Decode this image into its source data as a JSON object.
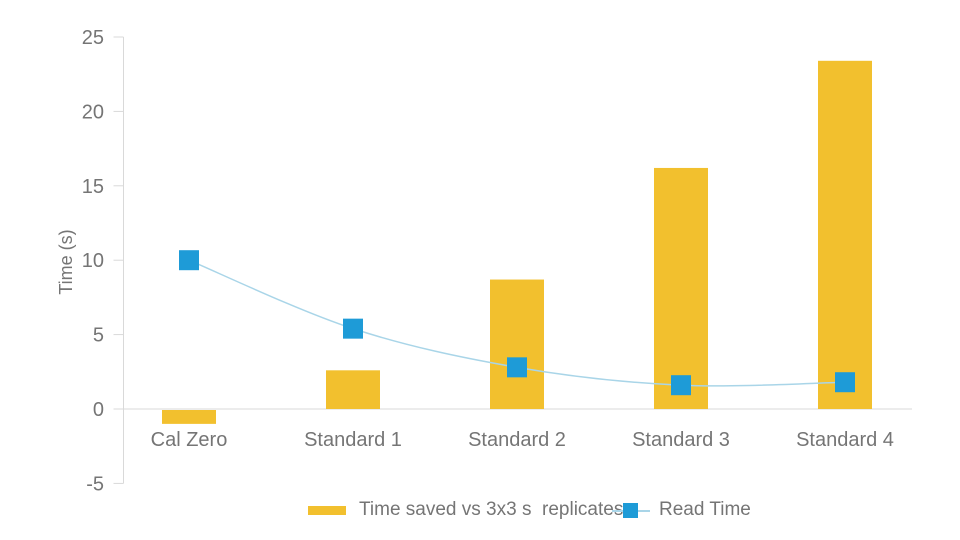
{
  "chart_data": {
    "type": "bar",
    "subtype": "combo-bar-line",
    "title": "",
    "categories": [
      "Cal Zero",
      "Standard 1",
      "Standard 2",
      "Standard 3",
      "Standard 4"
    ],
    "series": [
      {
        "name": "Time saved vs 3x3 s  replicates",
        "type": "bar",
        "color": "#F2C02E",
        "values": [
          -1,
          2.6,
          8.7,
          16.2,
          23.4
        ]
      },
      {
        "name": "Read Time",
        "type": "line",
        "marker": "square",
        "line_color": "#A9D5E8",
        "marker_color": "#1E9BD7",
        "values": [
          10,
          5.4,
          2.8,
          1.6,
          1.8
        ]
      }
    ],
    "xlabel": "",
    "ylabel": "Time (s)",
    "ylim": [
      -5,
      25
    ],
    "yticks": [
      25,
      20,
      15,
      10,
      5,
      0,
      -5
    ],
    "grid": "zero-line-only",
    "legend_position": "bottom",
    "axis_color": "#D9D9D9",
    "text_color": "#757575"
  }
}
